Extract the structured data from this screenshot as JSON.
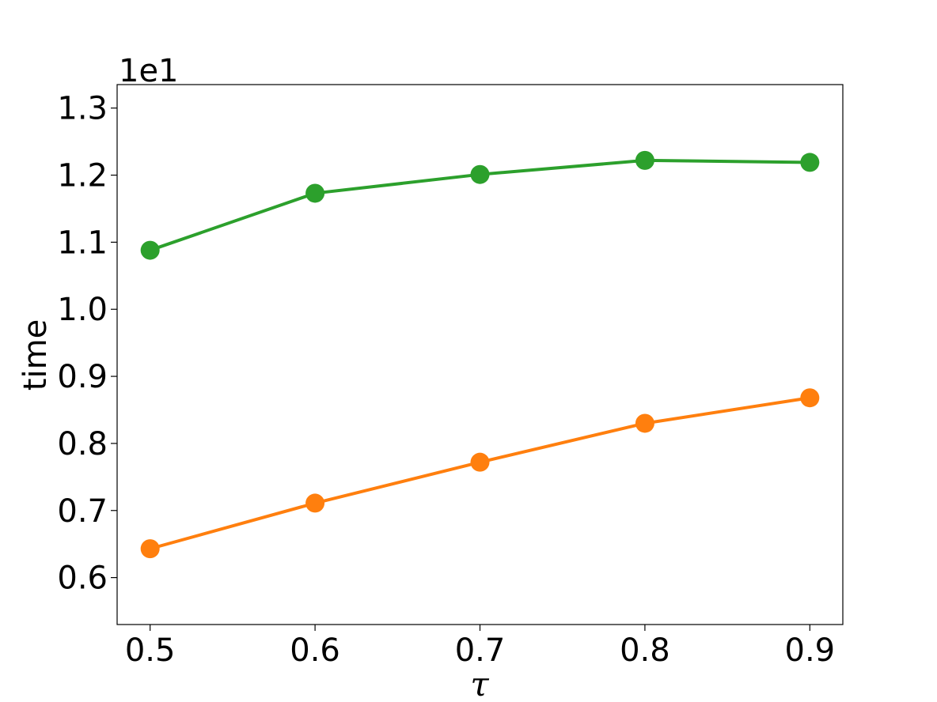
{
  "chart_data": {
    "type": "line",
    "x": [
      0.5,
      0.6,
      0.7,
      0.8,
      0.9
    ],
    "x_tick_labels": [
      "0.5",
      "0.6",
      "0.7",
      "0.8",
      "0.9"
    ],
    "y_tick_values": [
      0.6,
      0.7,
      0.8,
      0.9,
      1.0,
      1.1,
      1.2,
      1.3
    ],
    "y_tick_labels": [
      "0.6",
      "0.7",
      "0.8",
      "0.9",
      "1.0",
      "1.1",
      "1.2",
      "1.3"
    ],
    "y_offset_label": "1e1",
    "xlabel": "τ",
    "ylabel": "time",
    "xlim": [
      0.48,
      0.92
    ],
    "ylim": [
      0.53,
      1.335
    ],
    "grid": false,
    "series": [
      {
        "color": "#2ca02c",
        "values": [
          1.088,
          1.173,
          1.201,
          1.222,
          1.219
        ]
      },
      {
        "color": "#ff7f0e",
        "values": [
          0.643,
          0.711,
          0.772,
          0.83,
          0.868
        ]
      }
    ]
  }
}
